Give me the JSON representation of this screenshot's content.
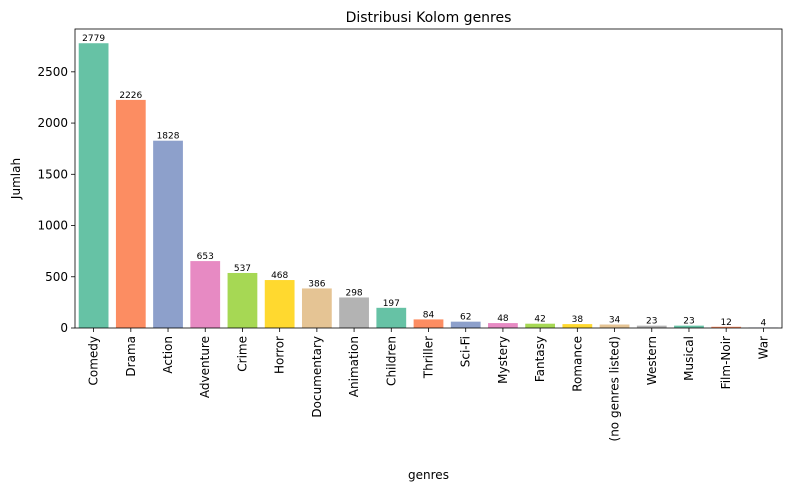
{
  "chart_data": {
    "type": "bar",
    "title": "Distribusi Kolom genres",
    "xlabel": "genres",
    "ylabel": "Jumlah",
    "categories": [
      "Comedy",
      "Drama",
      "Action",
      "Adventure",
      "Crime",
      "Horror",
      "Documentary",
      "Animation",
      "Children",
      "Thriller",
      "Sci-Fi",
      "Mystery",
      "Fantasy",
      "Romance",
      "(no genres listed)",
      "Western",
      "Musical",
      "Film-Noir",
      "War"
    ],
    "values": [
      2779,
      2226,
      1828,
      653,
      537,
      468,
      386,
      298,
      197,
      84,
      62,
      48,
      42,
      38,
      34,
      23,
      23,
      12,
      4
    ],
    "colors": [
      "#66c2a5",
      "#fc8d62",
      "#8da0cb",
      "#e78ac3",
      "#a6d854",
      "#ffd92f",
      "#e5c494",
      "#b3b3b3",
      "#66c2a5",
      "#fc8d62",
      "#8da0cb",
      "#e78ac3",
      "#a6d854",
      "#ffd92f",
      "#e5c494",
      "#b3b3b3",
      "#66c2a5",
      "#fc8d62",
      "#8da0cb"
    ],
    "yticks": [
      0,
      500,
      1000,
      1500,
      2000,
      2500
    ],
    "ylim": [
      0,
      2918
    ],
    "grid": false,
    "legend": "none"
  }
}
